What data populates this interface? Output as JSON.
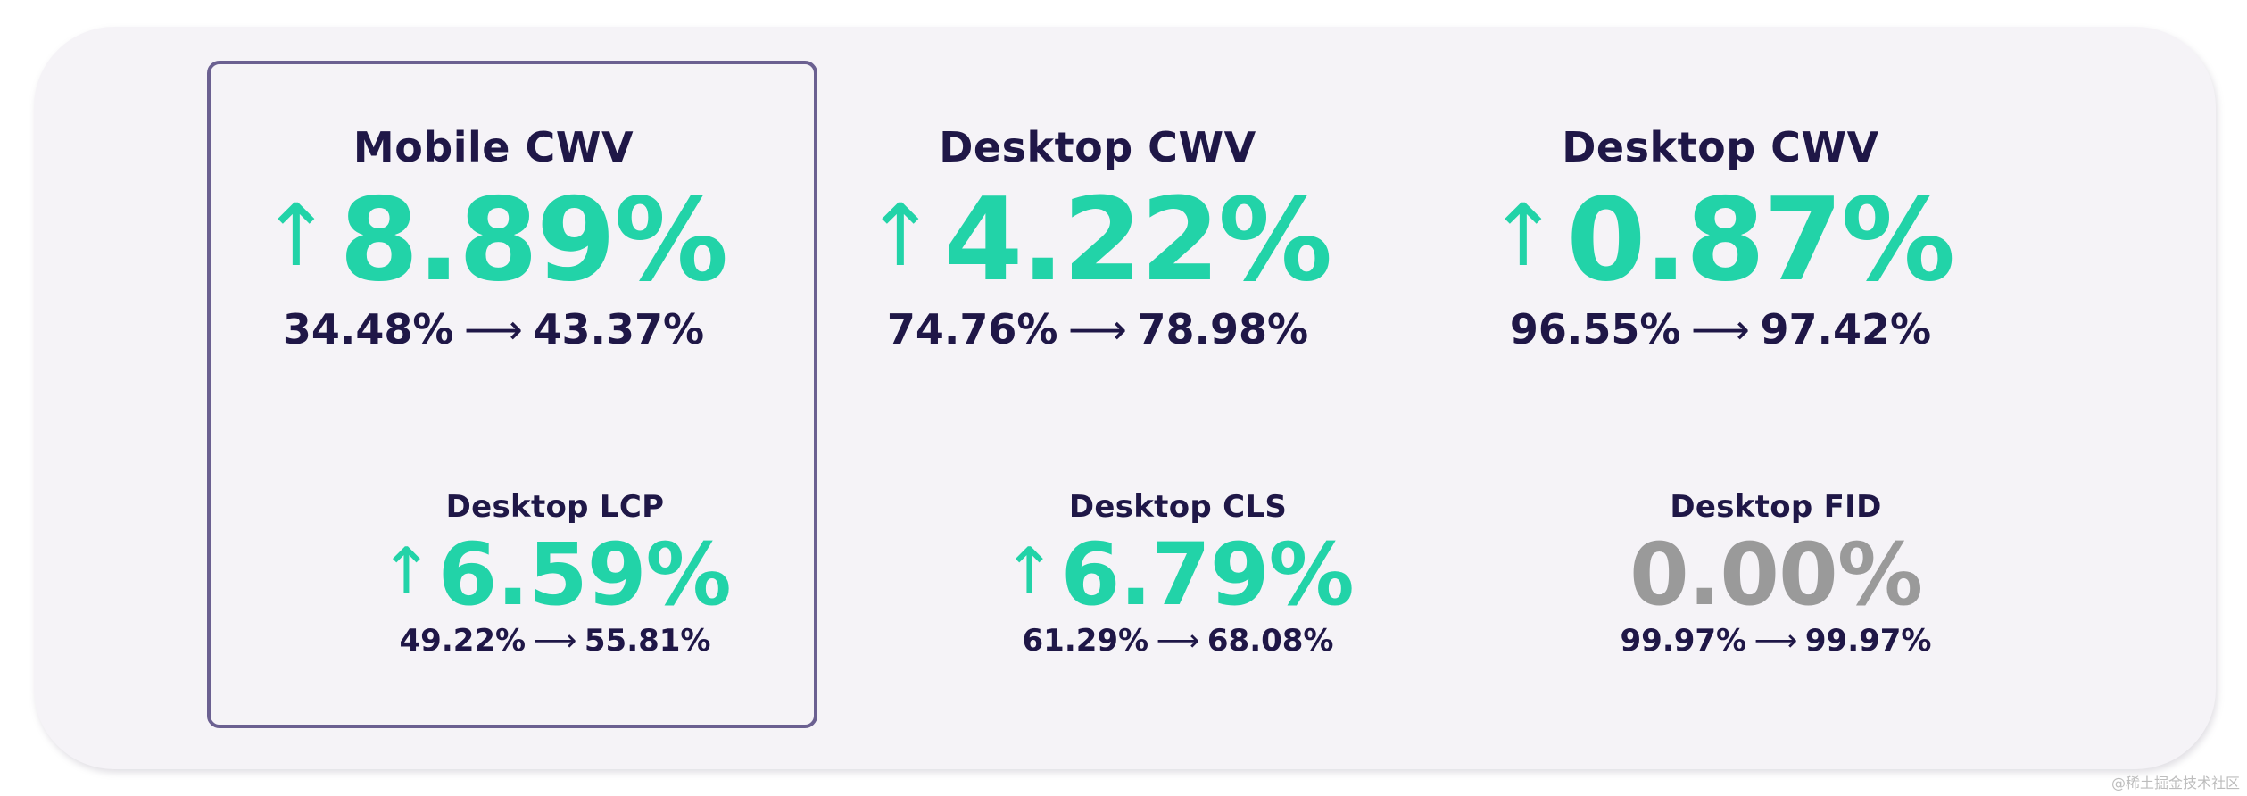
{
  "colors": {
    "panel_background": "#f5f3f7",
    "frame": "#6b6091",
    "title_text": "#1f1747",
    "increase": "#22d3a8",
    "neutral": "#9a9a9a"
  },
  "metrics": [
    {
      "title": "Mobile CWV",
      "trend_icon": "arrow-up-icon",
      "arrow": "↑",
      "value": "8.89%",
      "from": "34.48%",
      "to_arrow": "⟶",
      "to": "43.37%",
      "status": "increase",
      "highlighted": true
    },
    {
      "title": "Desktop CWV",
      "trend_icon": "arrow-up-icon",
      "arrow": "↑",
      "value": "4.22%",
      "from": "74.76%",
      "to_arrow": "⟶",
      "to": "78.98%",
      "status": "increase"
    },
    {
      "title": "Desktop CWV",
      "trend_icon": "arrow-up-icon",
      "arrow": "↑",
      "value": "0.87%",
      "from": "96.55%",
      "to_arrow": "⟶",
      "to": "97.42%",
      "status": "increase"
    },
    {
      "title": "Desktop LCP",
      "trend_icon": "arrow-up-icon",
      "arrow": "↑",
      "value": "6.59%",
      "from": "49.22%",
      "to_arrow": "⟶",
      "to": "55.81%",
      "status": "increase",
      "highlighted": true
    },
    {
      "title": "Desktop CLS",
      "trend_icon": "arrow-up-icon",
      "arrow": "↑",
      "value": "6.79%",
      "from": "61.29%",
      "to_arrow": "⟶",
      "to": "68.08%",
      "status": "increase"
    },
    {
      "title": "Desktop FID",
      "trend_icon": "none",
      "arrow": "",
      "value": "0.00%",
      "from": "99.97%",
      "to_arrow": "⟶",
      "to": "99.97%",
      "status": "neutral"
    }
  ],
  "watermark": "@稀土掘金技术社区"
}
